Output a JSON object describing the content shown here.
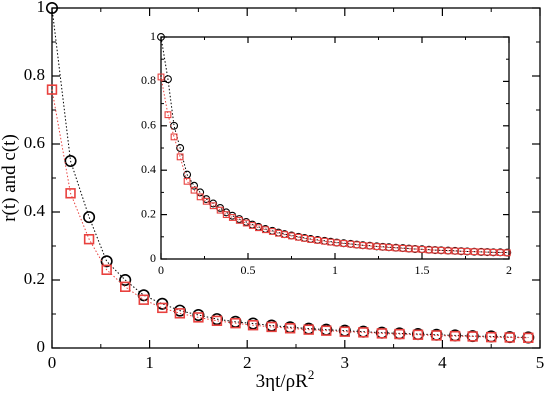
{
  "chart_data": [
    {
      "type": "scatter",
      "panel": "main",
      "xlabel": "3ηt/ρR",
      "xlabel_superscript": "2",
      "ylabel": "r(t) and c(t)",
      "xlim": [
        0,
        5
      ],
      "ylim": [
        0,
        1
      ],
      "xticks": [
        0,
        1,
        2,
        3,
        4,
        5
      ],
      "yticks": [
        0,
        0.2,
        0.4,
        0.6,
        0.8,
        1
      ],
      "xtick_labels": [
        "0",
        "1",
        "2",
        "3",
        "4",
        "5"
      ],
      "ytick_labels": [
        "0",
        "0.2",
        "0.4",
        "0.6",
        "0.8",
        "1"
      ],
      "grid": false,
      "series": [
        {
          "marker": "circle",
          "line": "dotted",
          "color": "#000000",
          "points": [
            [
              0.0,
              1.0
            ],
            [
              0.19,
              0.55
            ],
            [
              0.38,
              0.385
            ],
            [
              0.56,
              0.255
            ],
            [
              0.75,
              0.2
            ],
            [
              0.94,
              0.155
            ],
            [
              1.13,
              0.13
            ],
            [
              1.31,
              0.11
            ],
            [
              1.5,
              0.097
            ],
            [
              1.69,
              0.085
            ],
            [
              1.88,
              0.077
            ],
            [
              2.06,
              0.072
            ],
            [
              2.25,
              0.066
            ],
            [
              2.44,
              0.061
            ],
            [
              2.63,
              0.057
            ],
            [
              2.81,
              0.054
            ],
            [
              3.0,
              0.051
            ],
            [
              3.19,
              0.048
            ],
            [
              3.38,
              0.045
            ],
            [
              3.56,
              0.043
            ],
            [
              3.75,
              0.041
            ],
            [
              3.94,
              0.039
            ],
            [
              4.13,
              0.037
            ],
            [
              4.31,
              0.035
            ],
            [
              4.5,
              0.034
            ],
            [
              4.69,
              0.032
            ],
            [
              4.88,
              0.031
            ]
          ]
        },
        {
          "marker": "square",
          "line": "dotted",
          "color": "#e8413e",
          "points": [
            [
              0.0,
              0.76
            ],
            [
              0.19,
              0.455
            ],
            [
              0.38,
              0.32
            ],
            [
              0.56,
              0.23
            ],
            [
              0.75,
              0.18
            ],
            [
              0.94,
              0.142
            ],
            [
              1.13,
              0.118
            ],
            [
              1.31,
              0.102
            ],
            [
              1.5,
              0.09
            ],
            [
              1.69,
              0.08
            ],
            [
              1.88,
              0.073
            ],
            [
              2.06,
              0.067
            ],
            [
              2.25,
              0.062
            ],
            [
              2.44,
              0.058
            ],
            [
              2.63,
              0.054
            ],
            [
              2.81,
              0.051
            ],
            [
              3.0,
              0.048
            ],
            [
              3.19,
              0.046
            ],
            [
              3.38,
              0.043
            ],
            [
              3.56,
              0.041
            ],
            [
              3.75,
              0.039
            ],
            [
              3.94,
              0.037
            ],
            [
              4.13,
              0.035
            ],
            [
              4.31,
              0.034
            ],
            [
              4.5,
              0.032
            ],
            [
              4.69,
              0.031
            ],
            [
              4.88,
              0.03
            ]
          ]
        }
      ]
    },
    {
      "type": "scatter",
      "panel": "inset",
      "xlim": [
        0,
        2
      ],
      "ylim": [
        0,
        1
      ],
      "xticks": [
        0,
        0.5,
        1,
        1.5,
        2
      ],
      "yticks": [
        0,
        0.2,
        0.4,
        0.6,
        0.8,
        1
      ],
      "xtick_labels": [
        "0",
        "0.5",
        "1",
        "1.5",
        "2"
      ],
      "ytick_labels": [
        "0",
        "0.2",
        "0.4",
        "0.6",
        "0.8",
        "1"
      ],
      "grid": false,
      "series": [
        {
          "marker": "circle",
          "line": "dotted",
          "color": "#000000",
          "points": [
            [
              0.0,
              1.0
            ],
            [
              0.04,
              0.81
            ],
            [
              0.075,
              0.6
            ],
            [
              0.11,
              0.5
            ],
            [
              0.15,
              0.38
            ],
            [
              0.19,
              0.33
            ],
            [
              0.225,
              0.3
            ],
            [
              0.26,
              0.27
            ],
            [
              0.3,
              0.25
            ],
            [
              0.34,
              0.23
            ],
            [
              0.375,
              0.21
            ],
            [
              0.41,
              0.195
            ],
            [
              0.45,
              0.18
            ],
            [
              0.49,
              0.167
            ],
            [
              0.525,
              0.155
            ],
            [
              0.56,
              0.145
            ],
            [
              0.6,
              0.135
            ],
            [
              0.64,
              0.127
            ],
            [
              0.675,
              0.119
            ],
            [
              0.71,
              0.112
            ],
            [
              0.75,
              0.106
            ],
            [
              0.79,
              0.1
            ],
            [
              0.825,
              0.095
            ],
            [
              0.86,
              0.09
            ],
            [
              0.9,
              0.086
            ],
            [
              0.94,
              0.082
            ],
            [
              0.975,
              0.078
            ],
            [
              1.01,
              0.074
            ],
            [
              1.05,
              0.071
            ],
            [
              1.09,
              0.068
            ],
            [
              1.125,
              0.065
            ],
            [
              1.16,
              0.062
            ],
            [
              1.2,
              0.06
            ],
            [
              1.24,
              0.057
            ],
            [
              1.275,
              0.055
            ],
            [
              1.31,
              0.053
            ],
            [
              1.35,
              0.051
            ],
            [
              1.39,
              0.049
            ],
            [
              1.425,
              0.047
            ],
            [
              1.46,
              0.045
            ],
            [
              1.5,
              0.044
            ],
            [
              1.54,
              0.042
            ],
            [
              1.575,
              0.04
            ],
            [
              1.61,
              0.039
            ],
            [
              1.65,
              0.038
            ],
            [
              1.69,
              0.037
            ],
            [
              1.725,
              0.035
            ],
            [
              1.76,
              0.034
            ],
            [
              1.8,
              0.033
            ],
            [
              1.84,
              0.032
            ],
            [
              1.875,
              0.031
            ],
            [
              1.91,
              0.03
            ],
            [
              1.95,
              0.03
            ],
            [
              1.99,
              0.029
            ]
          ]
        },
        {
          "marker": "square",
          "line": "dotted",
          "color": "#e8413e",
          "points": [
            [
              0.0,
              0.82
            ],
            [
              0.04,
              0.65
            ],
            [
              0.075,
              0.55
            ],
            [
              0.11,
              0.46
            ],
            [
              0.15,
              0.35
            ],
            [
              0.19,
              0.31
            ],
            [
              0.225,
              0.28
            ],
            [
              0.26,
              0.26
            ],
            [
              0.3,
              0.24
            ],
            [
              0.34,
              0.22
            ],
            [
              0.375,
              0.2
            ],
            [
              0.41,
              0.187
            ],
            [
              0.45,
              0.174
            ],
            [
              0.49,
              0.162
            ],
            [
              0.525,
              0.151
            ],
            [
              0.56,
              0.141
            ],
            [
              0.6,
              0.132
            ],
            [
              0.64,
              0.124
            ],
            [
              0.675,
              0.116
            ],
            [
              0.71,
              0.11
            ],
            [
              0.75,
              0.104
            ],
            [
              0.79,
              0.098
            ],
            [
              0.825,
              0.093
            ],
            [
              0.86,
              0.088
            ],
            [
              0.9,
              0.084
            ],
            [
              0.94,
              0.08
            ],
            [
              0.975,
              0.076
            ],
            [
              1.01,
              0.073
            ],
            [
              1.05,
              0.07
            ],
            [
              1.09,
              0.067
            ],
            [
              1.125,
              0.064
            ],
            [
              1.16,
              0.061
            ],
            [
              1.2,
              0.059
            ],
            [
              1.24,
              0.056
            ],
            [
              1.275,
              0.054
            ],
            [
              1.31,
              0.052
            ],
            [
              1.35,
              0.05
            ],
            [
              1.39,
              0.048
            ],
            [
              1.425,
              0.046
            ],
            [
              1.46,
              0.045
            ],
            [
              1.5,
              0.043
            ],
            [
              1.54,
              0.041
            ],
            [
              1.575,
              0.04
            ],
            [
              1.61,
              0.039
            ],
            [
              1.65,
              0.037
            ],
            [
              1.69,
              0.036
            ],
            [
              1.725,
              0.035
            ],
            [
              1.76,
              0.034
            ],
            [
              1.8,
              0.033
            ],
            [
              1.84,
              0.032
            ],
            [
              1.875,
              0.031
            ],
            [
              1.91,
              0.03
            ],
            [
              1.95,
              0.029
            ],
            [
              1.99,
              0.028
            ]
          ]
        }
      ]
    }
  ]
}
